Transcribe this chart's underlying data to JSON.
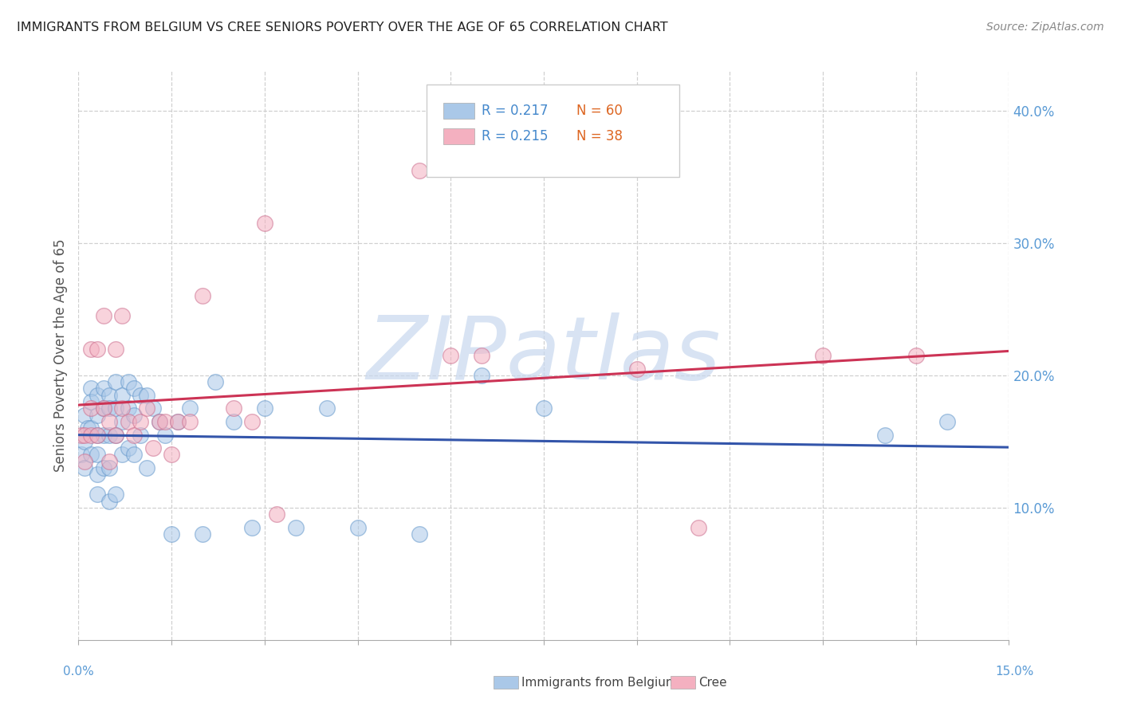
{
  "title": "IMMIGRANTS FROM BELGIUM VS CREE SENIORS POVERTY OVER THE AGE OF 65 CORRELATION CHART",
  "source": "Source: ZipAtlas.com",
  "ylabel": "Seniors Poverty Over the Age of 65",
  "legend_label_blue": "Immigrants from Belgium",
  "legend_label_pink": "Cree",
  "xlim": [
    0,
    0.15
  ],
  "ylim": [
    0,
    0.43
  ],
  "blue_r": "0.217",
  "blue_n": "60",
  "pink_r": "0.215",
  "pink_n": "38",
  "blue_face": "#aac8e8",
  "blue_edge": "#6699cc",
  "pink_face": "#f4b0c0",
  "pink_edge": "#cc7090",
  "blue_line": "#3355aa",
  "pink_line": "#cc3355",
  "r_color": "#4488cc",
  "n_color": "#dd6622",
  "watermark": "ZIPatlas",
  "watermark_color": "#c8d8ee",
  "blue_x": [
    0.0005,
    0.001,
    0.001,
    0.001,
    0.0015,
    0.002,
    0.002,
    0.002,
    0.002,
    0.003,
    0.003,
    0.003,
    0.003,
    0.003,
    0.003,
    0.004,
    0.004,
    0.004,
    0.004,
    0.005,
    0.005,
    0.005,
    0.005,
    0.005,
    0.006,
    0.006,
    0.006,
    0.006,
    0.007,
    0.007,
    0.007,
    0.008,
    0.008,
    0.008,
    0.009,
    0.009,
    0.009,
    0.01,
    0.01,
    0.011,
    0.011,
    0.012,
    0.013,
    0.014,
    0.015,
    0.016,
    0.018,
    0.02,
    0.022,
    0.025,
    0.028,
    0.03,
    0.035,
    0.04,
    0.045,
    0.055,
    0.065,
    0.075,
    0.13,
    0.14
  ],
  "blue_y": [
    0.14,
    0.17,
    0.15,
    0.13,
    0.16,
    0.19,
    0.18,
    0.16,
    0.14,
    0.185,
    0.17,
    0.155,
    0.14,
    0.125,
    0.11,
    0.19,
    0.175,
    0.155,
    0.13,
    0.185,
    0.175,
    0.155,
    0.13,
    0.105,
    0.195,
    0.175,
    0.155,
    0.11,
    0.185,
    0.165,
    0.14,
    0.195,
    0.175,
    0.145,
    0.19,
    0.17,
    0.14,
    0.185,
    0.155,
    0.185,
    0.13,
    0.175,
    0.165,
    0.155,
    0.08,
    0.165,
    0.175,
    0.08,
    0.195,
    0.165,
    0.085,
    0.175,
    0.085,
    0.175,
    0.085,
    0.08,
    0.2,
    0.175,
    0.155,
    0.165
  ],
  "pink_x": [
    0.0005,
    0.001,
    0.001,
    0.002,
    0.002,
    0.002,
    0.003,
    0.003,
    0.004,
    0.004,
    0.005,
    0.005,
    0.006,
    0.006,
    0.007,
    0.007,
    0.008,
    0.009,
    0.01,
    0.011,
    0.012,
    0.013,
    0.014,
    0.015,
    0.016,
    0.018,
    0.02,
    0.025,
    0.028,
    0.03,
    0.032,
    0.055,
    0.06,
    0.065,
    0.09,
    0.1,
    0.12,
    0.135
  ],
  "pink_y": [
    0.155,
    0.155,
    0.135,
    0.22,
    0.175,
    0.155,
    0.22,
    0.155,
    0.245,
    0.175,
    0.165,
    0.135,
    0.22,
    0.155,
    0.245,
    0.175,
    0.165,
    0.155,
    0.165,
    0.175,
    0.145,
    0.165,
    0.165,
    0.14,
    0.165,
    0.165,
    0.26,
    0.175,
    0.165,
    0.315,
    0.095,
    0.355,
    0.215,
    0.215,
    0.205,
    0.085,
    0.215,
    0.215
  ]
}
